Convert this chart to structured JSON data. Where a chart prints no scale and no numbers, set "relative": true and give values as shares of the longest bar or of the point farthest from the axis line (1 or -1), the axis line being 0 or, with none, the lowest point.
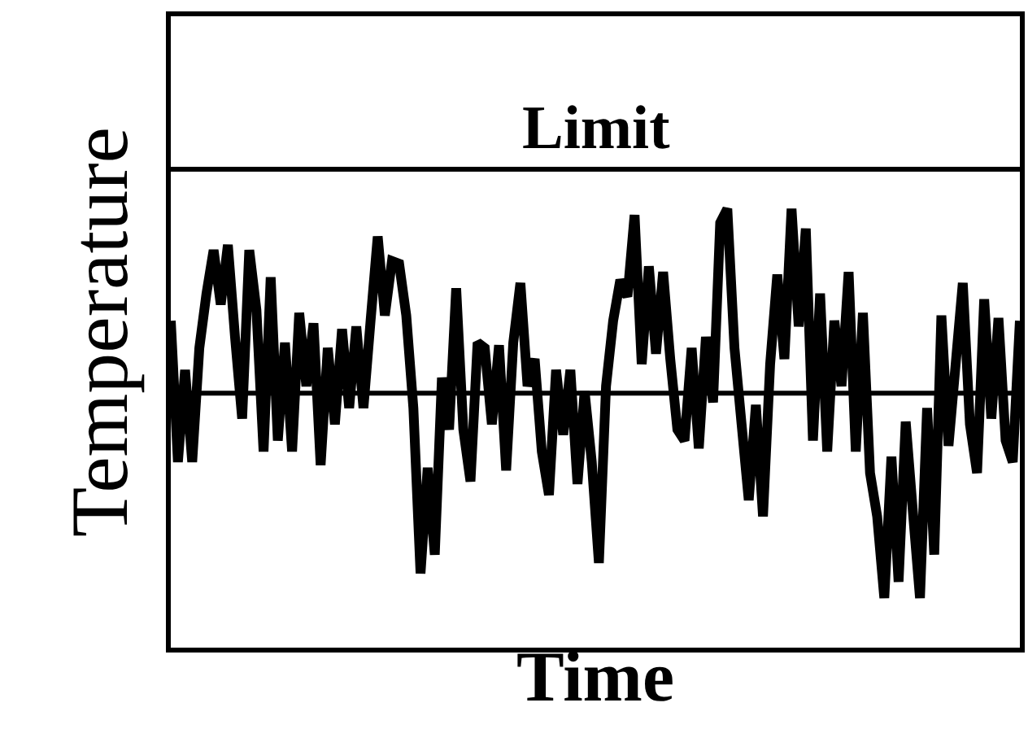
{
  "chart_data": {
    "type": "line",
    "relative": true,
    "xlabel": "Time",
    "ylabel": "Temperature",
    "marker": "none",
    "line_style": "solid",
    "categories": [
      null,
      null,
      null,
      null,
      null,
      null,
      null,
      null,
      null,
      null,
      null,
      null,
      null,
      null,
      null,
      null,
      null,
      null,
      null,
      null,
      null,
      null,
      null,
      null,
      null,
      null,
      null,
      null,
      null,
      null,
      null,
      null,
      null,
      null,
      null,
      null,
      null,
      null,
      null,
      null,
      null,
      null,
      null,
      null,
      null,
      null,
      null,
      null,
      null,
      null,
      null,
      null,
      null,
      null,
      null,
      null,
      null,
      null,
      null,
      null,
      null,
      null,
      null,
      null,
      null,
      null,
      null,
      null,
      null,
      null,
      null,
      null,
      null,
      null,
      null,
      null,
      null,
      null,
      null,
      null,
      null,
      null,
      null,
      null,
      null,
      null,
      null,
      null,
      null,
      null,
      null,
      null,
      null,
      null,
      null,
      null,
      null,
      null,
      null,
      null,
      null,
      null,
      null,
      null,
      null,
      null,
      null,
      null,
      null,
      null,
      null,
      null,
      null,
      null,
      null,
      null,
      null,
      null,
      null,
      null
    ],
    "series": [
      {
        "color": "#000000",
        "values": [
          0.745,
          0.423,
          0.633,
          0.423,
          0.683,
          0.807,
          0.906,
          0.782,
          0.918,
          0.708,
          0.522,
          0.906,
          0.77,
          0.447,
          0.844,
          0.472,
          0.695,
          0.447,
          0.763,
          0.596,
          0.739,
          0.416,
          0.683,
          0.509,
          0.726,
          0.546,
          0.732,
          0.546,
          0.745,
          0.937,
          0.757,
          0.881,
          0.875,
          0.757,
          0.546,
          0.169,
          0.41,
          0.212,
          0.615,
          0.497,
          0.819,
          0.497,
          0.379,
          0.695,
          0.683,
          0.509,
          0.689,
          0.404,
          0.695,
          0.831,
          0.596,
          0.658,
          0.447,
          0.348,
          0.633,
          0.485,
          0.633,
          0.373,
          0.584,
          0.423,
          0.193,
          0.596,
          0.745,
          0.838,
          0.8,
          0.986,
          0.646,
          0.869,
          0.67,
          0.856,
          0.658,
          0.497,
          0.472,
          0.683,
          0.454,
          0.708,
          0.559,
          0.968,
          1.0,
          0.683,
          0.509,
          0.336,
          0.553,
          0.299,
          0.646,
          0.85,
          0.658,
          1.0,
          0.732,
          0.955,
          0.472,
          0.807,
          0.447,
          0.745,
          0.596,
          0.856,
          0.447,
          0.763,
          0.398,
          0.299,
          0.113,
          0.435,
          0.15,
          0.515,
          0.311,
          0.113,
          0.546,
          0.212,
          0.757,
          0.46,
          0.646,
          0.831,
          0.509,
          0.398,
          0.794,
          0.522,
          0.751,
          0.472,
          0.423,
          0.745
        ]
      }
    ],
    "ref_lines": [
      {
        "axis": "y",
        "value": 1.09,
        "label": "Limit",
        "color": "#000000",
        "line_style": "solid"
      },
      {
        "axis": "y",
        "value": 0.58,
        "color": "#000000",
        "line_style": "solid"
      }
    ]
  }
}
